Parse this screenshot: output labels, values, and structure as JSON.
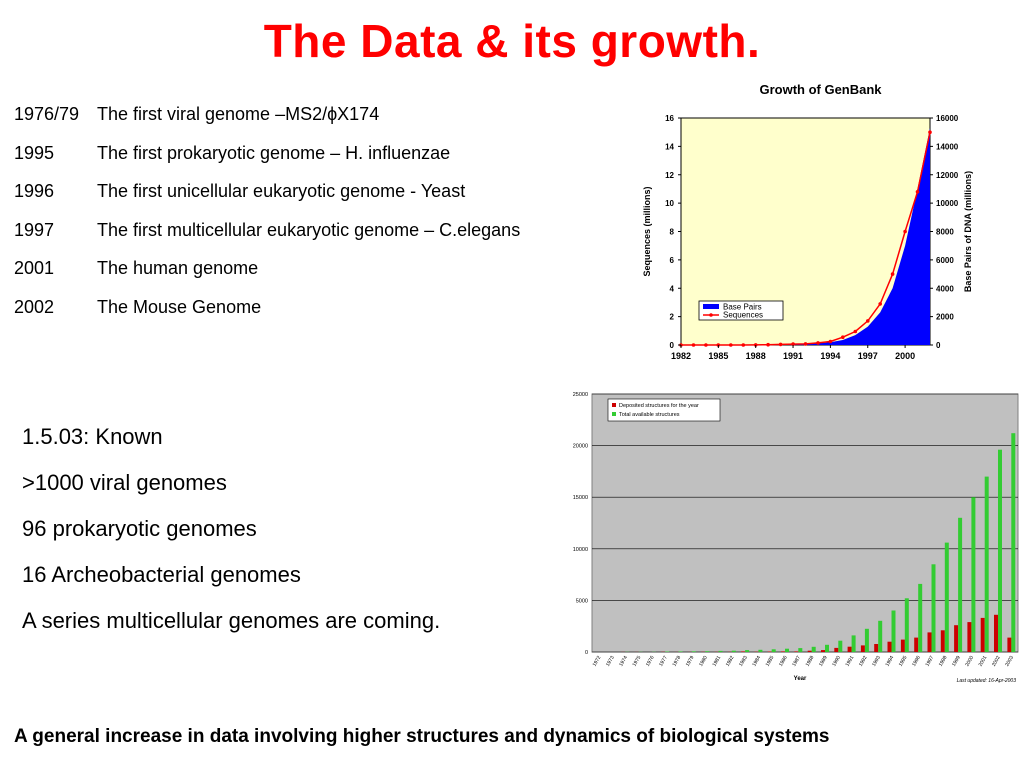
{
  "title": "The Data & its growth.",
  "timeline": [
    {
      "year": "1976/79",
      "text": "The first viral genome –MS2/ϕX174"
    },
    {
      "year": "1995",
      "text": "The first prokaryotic genome – H. influenzae"
    },
    {
      "year": "1996",
      "text": "The first unicellular eukaryotic genome - Yeast"
    },
    {
      "year": "1997",
      "text": "The first multicellular eukaryotic genome – C.elegans"
    },
    {
      "year": "2001",
      "text": "The human genome"
    },
    {
      "year": "2002",
      "text": "The Mouse Genome"
    }
  ],
  "known": [
    "1.5.03:  Known",
    ">1000  viral genomes",
    "96        prokaryotic genomes",
    "16       Archeobacterial genomes",
    "A series multicellular genomes are coming."
  ],
  "footer": "A general increase in data involving higher structures and dynamics of biological systems",
  "chart_data": [
    {
      "type": "area",
      "title": "Growth of GenBank",
      "ylabel": "Sequences (millions)",
      "y2label": "Base Pairs of DNA (millions)",
      "xlim": [
        1982,
        2002
      ],
      "ylim": [
        0,
        16
      ],
      "y2lim": [
        0,
        16000
      ],
      "xticks": [
        "1982",
        "1985",
        "1988",
        "1991",
        "1994",
        "1997",
        "2000"
      ],
      "yticks": [
        "0",
        "2",
        "4",
        "6",
        "8",
        "10",
        "12",
        "14",
        "16"
      ],
      "y2ticks": [
        "0",
        "2000",
        "4000",
        "6000",
        "8000",
        "10000",
        "12000",
        "14000",
        "16000"
      ],
      "legend_position": "bottom-left",
      "grid": false,
      "background_color": "#ffffcc",
      "series": [
        {
          "name": "Base Pairs",
          "kind": "area",
          "axis": "right",
          "color": "#0000ff",
          "x": [
            1982,
            1983,
            1984,
            1985,
            1986,
            1987,
            1988,
            1989,
            1990,
            1991,
            1992,
            1993,
            1994,
            1995,
            1996,
            1997,
            1998,
            1999,
            2000,
            2001,
            2002
          ],
          "values": [
            0,
            0,
            0,
            0,
            0,
            0,
            5,
            10,
            20,
            40,
            80,
            120,
            200,
            350,
            700,
            1300,
            2300,
            4000,
            7000,
            11000,
            15300
          ]
        },
        {
          "name": "Sequences",
          "kind": "line",
          "axis": "left",
          "color": "#ff0000",
          "x": [
            1982,
            1983,
            1984,
            1985,
            1986,
            1987,
            1988,
            1989,
            1990,
            1991,
            1992,
            1993,
            1994,
            1995,
            1996,
            1997,
            1998,
            1999,
            2000,
            2001,
            2002
          ],
          "values": [
            0,
            0,
            0,
            0,
            0,
            0,
            0.01,
            0.02,
            0.04,
            0.06,
            0.08,
            0.15,
            0.25,
            0.55,
            0.95,
            1.7,
            2.9,
            5.0,
            8.0,
            10.8,
            15.0
          ]
        }
      ]
    },
    {
      "type": "bar",
      "xlabel": "Year",
      "ylim": [
        0,
        25000
      ],
      "yticks": [
        "0",
        "5000",
        "10000",
        "15000",
        "20000",
        "25000"
      ],
      "grid": true,
      "legend_position": "top-left",
      "background_color": "#c0c0c0",
      "note": "Last updated: 16-Apr-2003",
      "categories": [
        "1972",
        "1973",
        "1974",
        "1975",
        "1976",
        "1977",
        "1978",
        "1979",
        "1980",
        "1981",
        "1982",
        "1983",
        "1984",
        "1985",
        "1986",
        "1987",
        "1988",
        "1989",
        "1990",
        "1991",
        "1992",
        "1993",
        "1994",
        "1995",
        "1996",
        "1997",
        "1998",
        "1999",
        "2000",
        "2001",
        "2002",
        "2003"
      ],
      "series": [
        {
          "name": "Deposited structures for the year",
          "color": "#cc0000",
          "values": [
            1,
            3,
            12,
            6,
            1,
            23,
            14,
            6,
            16,
            22,
            24,
            57,
            33,
            48,
            55,
            59,
            128,
            188,
            395,
            515,
            639,
            775,
            1000,
            1200,
            1400,
            1900,
            2100,
            2600,
            2900,
            3300,
            3600,
            1400
          ]
        },
        {
          "name": "Total available structures",
          "color": "#33cc33",
          "values": [
            1,
            4,
            16,
            22,
            23,
            46,
            60,
            66,
            82,
            104,
            128,
            185,
            218,
            266,
            321,
            380,
            508,
            696,
            1091,
            1606,
            2245,
            3020,
            4020,
            5200,
            6600,
            8500,
            10600,
            13000,
            15000,
            17000,
            19600,
            21200
          ]
        }
      ]
    }
  ]
}
